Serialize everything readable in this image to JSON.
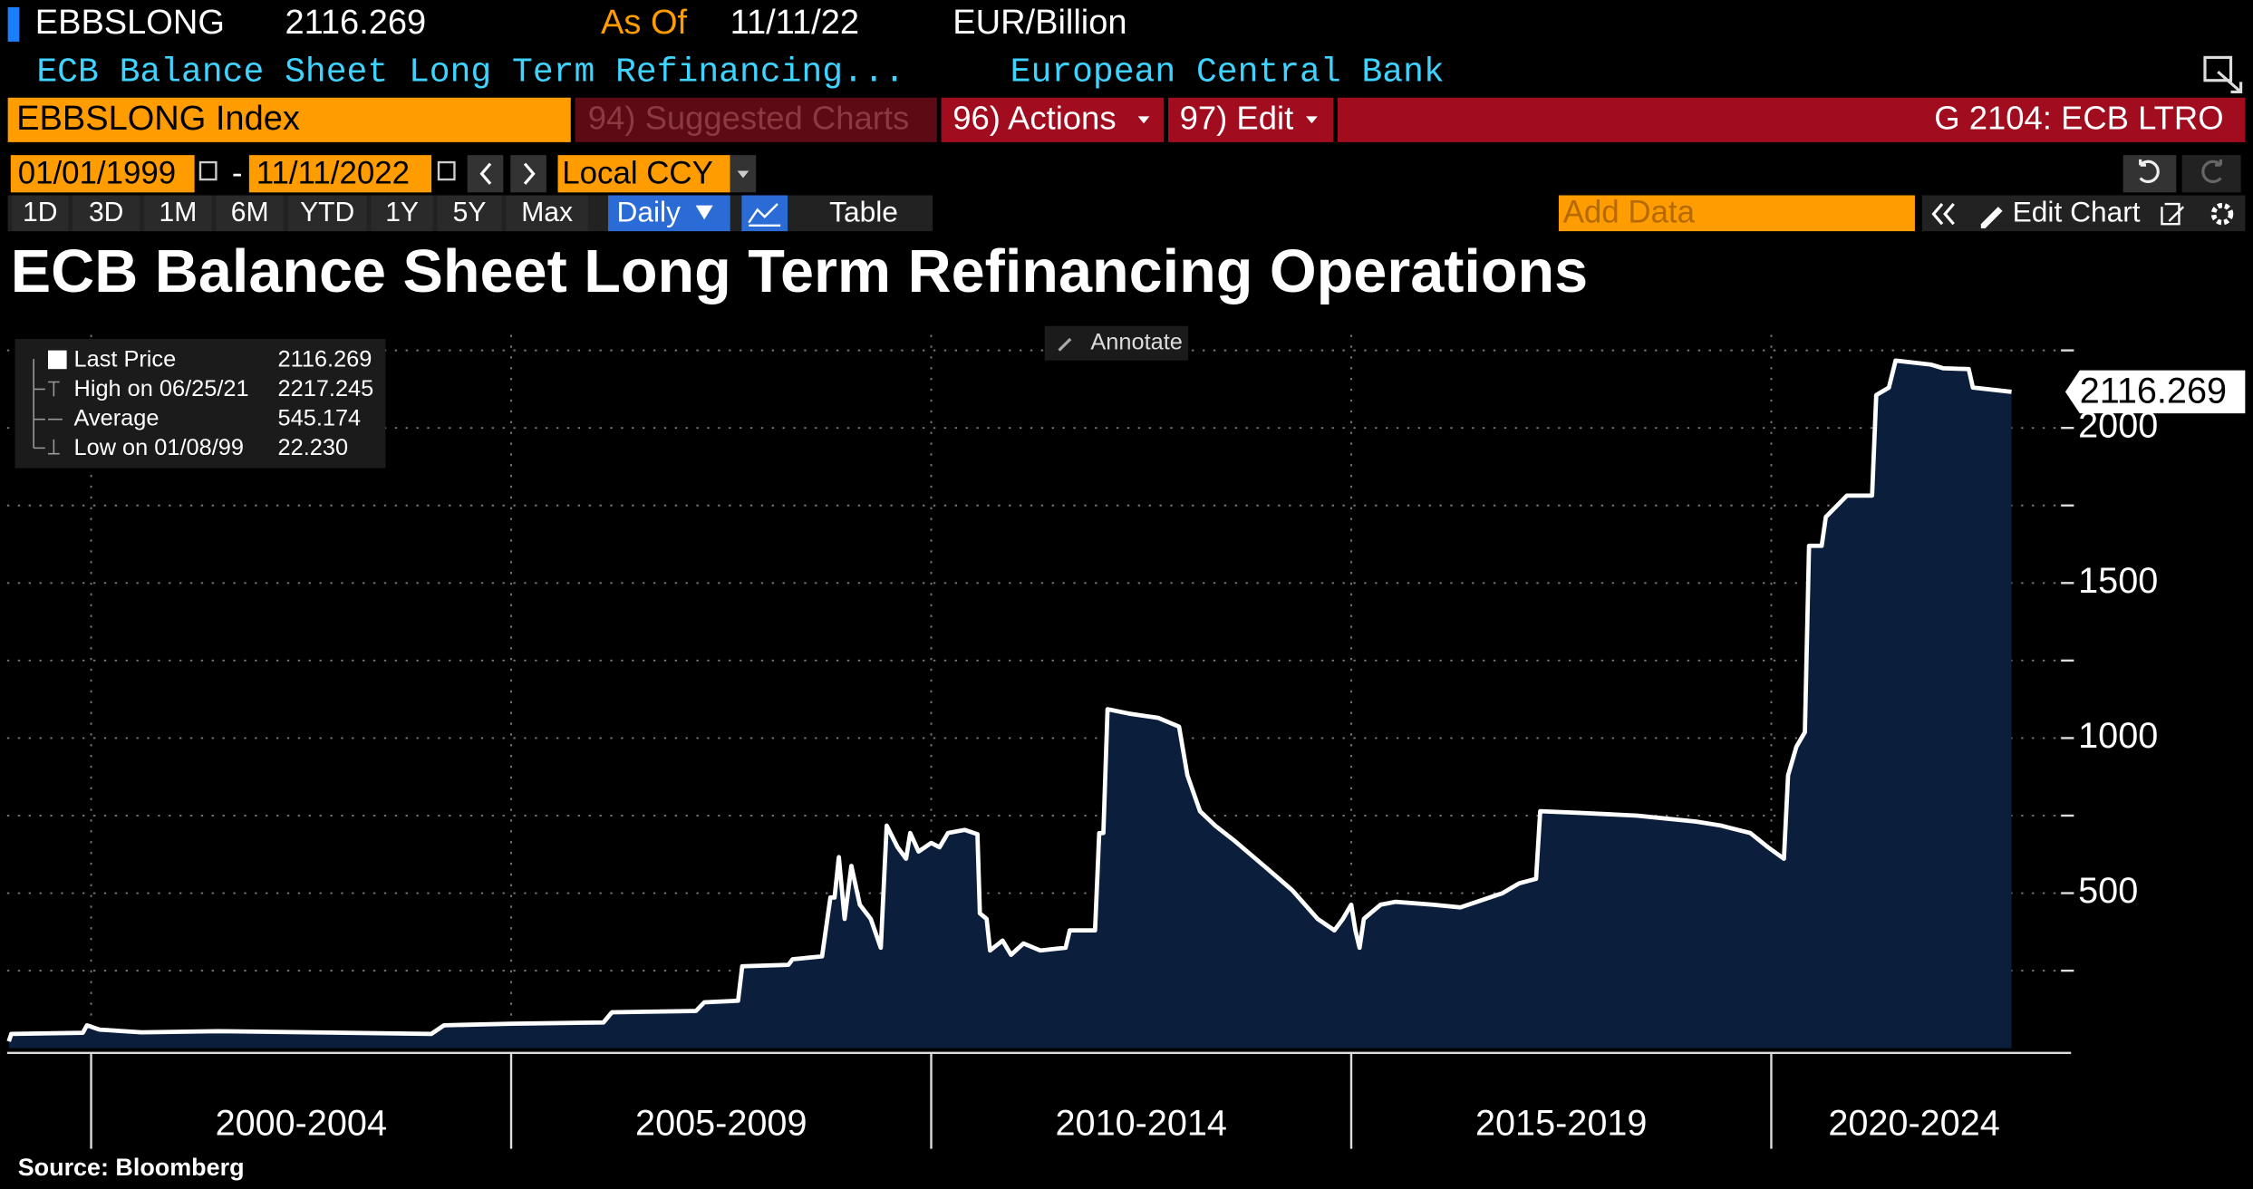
{
  "header": {
    "ticker": "EBBSLONG",
    "last": "2116.269",
    "as_of_label": "As Of",
    "as_of_date": "11/11/22",
    "units": "EUR/Billion",
    "description": "ECB Balance Sheet Long Term Refinancing...",
    "source_name": "European Central Bank"
  },
  "toolbar": {
    "security": "EBBSLONG Index",
    "suggested": "94) Suggested Charts",
    "actions": "96) Actions",
    "edit": "97) Edit",
    "function": "G 2104: ECB LTRO",
    "start_date": "01/01/1999",
    "separator": "-",
    "end_date": "11/11/2022",
    "currency": "Local CCY",
    "periods": [
      "1D",
      "3D",
      "1M",
      "6M",
      "YTD",
      "1Y",
      "5Y",
      "Max"
    ],
    "frequency": "Daily",
    "table": "Table",
    "add_data": "Add Data",
    "edit_chart": "Edit Chart"
  },
  "chart_data": {
    "type": "area",
    "title": "ECB Balance Sheet Long Term Refinancing Operations",
    "color": "#ffffff",
    "fill": "#0b1f3c",
    "annotate": "Annotate",
    "source": "Source: Bloomberg",
    "stats": [
      {
        "label": "Last Price",
        "value": "2116.269"
      },
      {
        "label": "High on 06/25/21",
        "value": "2217.245"
      },
      {
        "label": "Average",
        "value": "545.174"
      },
      {
        "label": "Low on 01/08/99",
        "value": "22.230"
      }
    ],
    "last_label": "2116.269",
    "x": [
      1999.02,
      1999.05,
      1999.9,
      1999.95,
      2000.1,
      2000.6,
      2001.5,
      2004.05,
      2004.2,
      2005.0,
      2006.1,
      2006.2,
      2007.2,
      2007.3,
      2007.7,
      2007.75,
      2008.3,
      2008.35,
      2008.7,
      2008.8,
      2008.85,
      2008.9,
      2008.97,
      2009.05,
      2009.15,
      2009.28,
      2009.4,
      2009.47,
      2009.6,
      2009.7,
      2009.75,
      2009.85,
      2010.0,
      2010.1,
      2010.2,
      2010.4,
      2010.55,
      2010.58,
      2010.66,
      2010.7,
      2010.85,
      2010.95,
      2011.1,
      2011.3,
      2011.6,
      2011.65,
      2011.95,
      2012.0,
      2012.05,
      2012.1,
      2012.35,
      2012.7,
      2012.95,
      2013.05,
      2013.2,
      2013.38,
      2013.6,
      2014.0,
      2014.3,
      2014.6,
      2014.8,
      2014.9,
      2015.0,
      2015.05,
      2015.1,
      2015.15,
      2015.25,
      2015.35,
      2015.53,
      2015.97,
      2016.3,
      2016.8,
      2017.0,
      2017.2,
      2017.25,
      2017.7,
      2018.4,
      2019.1,
      2019.4,
      2019.75,
      2019.96,
      2020.15,
      2020.2,
      2020.3,
      2020.4,
      2020.45,
      2020.6,
      2020.65,
      2020.9,
      2021.2,
      2021.25,
      2021.4,
      2021.48,
      2021.9,
      2022.05,
      2022.35,
      2022.4,
      2022.86
    ],
    "values": [
      22.23,
      46,
      50,
      74,
      60,
      51,
      55,
      46,
      74,
      79,
      83,
      116,
      120,
      148,
      153,
      264,
      269,
      287,
      296,
      486,
      486,
      616,
      417,
      588,
      463,
      417,
      324,
      718,
      648,
      611,
      694,
      634,
      662,
      648,
      694,
      704,
      690,
      435,
      417,
      315,
      347,
      301,
      338,
      315,
      324,
      380,
      380,
      694,
      694,
      1093,
      1079,
      1065,
      1037,
      880,
      764,
      718,
      671,
      579,
      509,
      417,
      380,
      417,
      463,
      380,
      324,
      417,
      440,
      463,
      472,
      463,
      454,
      500,
      532,
      546,
      764,
      759,
      750,
      731,
      718,
      694,
      648,
      611,
      880,
      972,
      1019,
      1620,
      1620,
      1713,
      1782,
      1782,
      2106,
      2130,
      2217.245,
      2204,
      2192,
      2190,
      2130,
      2116.269
    ],
    "xlim": [
      1999,
      2023.5
    ],
    "xticks": [
      2000,
      2005,
      2010,
      2015,
      2020
    ],
    "period_labels": [
      {
        "value": 2002.5,
        "label": "2000-2004"
      },
      {
        "value": 2007.5,
        "label": "2005-2009"
      },
      {
        "value": 2012.5,
        "label": "2010-2014"
      },
      {
        "value": 2017.5,
        "label": "2015-2019"
      },
      {
        "value": 2021.7,
        "label": "2020-2024"
      }
    ],
    "ylim": [
      -15,
      2300
    ],
    "yticks": [
      500,
      1000,
      1500,
      2000
    ],
    "minor_yticks": [
      250,
      750,
      1250,
      1750,
      2250
    ],
    "grid": true
  }
}
